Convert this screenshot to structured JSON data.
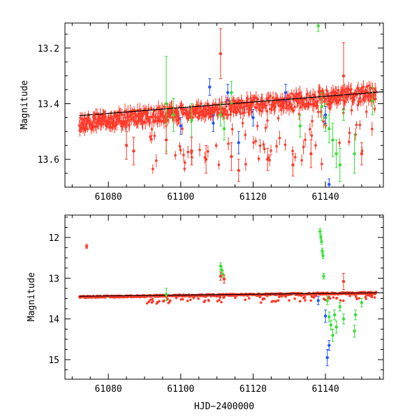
{
  "chart_data": [
    {
      "type": "scatter",
      "panel": "top",
      "title": "",
      "xlabel": "",
      "ylabel": "Magnitude",
      "xlim": [
        61068,
        61156
      ],
      "ylim": [
        13.11,
        13.7
      ],
      "y_inverted": true,
      "xticks": [
        61080,
        61100,
        61120,
        61140
      ],
      "xtick_labels": [
        "61080",
        "61100",
        "61120",
        "61140"
      ],
      "yticks": [
        13.2,
        13.4,
        13.6
      ],
      "ytick_labels": [
        "13.2",
        "13.4",
        "13.6"
      ],
      "colors": {
        "red": "#ff3a2a",
        "blue": "#2255ff",
        "green": "#33e033",
        "fit": "#000000"
      },
      "trend_line": {
        "x0": 61072,
        "y0": 13.443,
        "x1": 61156,
        "y1": 13.357
      },
      "red_band": {
        "x0": 61072,
        "x1": 61154,
        "y_at_x0": 13.47,
        "y_at_x1": 13.36,
        "dip_depth": 0.22
      },
      "series": [
        {
          "name": "red",
          "color": "#ff3a2a",
          "points": [
            {
              "x": 61073,
              "y": 13.47,
              "err": 0.012
            },
            {
              "x": 61074,
              "y": 13.47,
              "err": 0.012
            },
            {
              "x": 61076,
              "y": 13.45,
              "err": 0.012
            },
            {
              "x": 61079,
              "y": 13.44,
              "err": 0.012
            },
            {
              "x": 61085,
              "y": 13.55,
              "err": 0.05
            },
            {
              "x": 61087,
              "y": 13.57,
              "err": 0.05
            },
            {
              "x": 61096,
              "y": 13.53,
              "err": 0.05
            },
            {
              "x": 61103,
              "y": 13.57,
              "err": 0.05
            },
            {
              "x": 61107,
              "y": 13.6,
              "err": 0.05
            },
            {
              "x": 61111,
              "y": 13.22,
              "err": 0.09
            },
            {
              "x": 61114,
              "y": 13.59,
              "err": 0.05
            },
            {
              "x": 61116,
              "y": 13.64,
              "err": 0.04
            },
            {
              "x": 61124,
              "y": 13.6,
              "err": 0.04
            },
            {
              "x": 61131,
              "y": 13.62,
              "err": 0.04
            },
            {
              "x": 61136,
              "y": 13.58,
              "err": 0.05
            },
            {
              "x": 61145,
              "y": 13.3,
              "err": 0.12
            },
            {
              "x": 61150,
              "y": 13.58,
              "err": 0.04
            }
          ]
        },
        {
          "name": "blue",
          "color": "#2255ff",
          "points": [
            {
              "x": 61100,
              "y": 13.48,
              "err": 0.03
            },
            {
              "x": 61108,
              "y": 13.34,
              "err": 0.03
            },
            {
              "x": 61109,
              "y": 13.47,
              "err": 0.03
            },
            {
              "x": 61113,
              "y": 13.36,
              "err": 0.03
            },
            {
              "x": 61116,
              "y": 13.54,
              "err": 0.04
            },
            {
              "x": 61120,
              "y": 13.45,
              "err": 0.03
            },
            {
              "x": 61129,
              "y": 13.36,
              "err": 0.03
            },
            {
              "x": 61140,
              "y": 13.44,
              "err": 0.03
            },
            {
              "x": 61141,
              "y": 13.69,
              "err": 0.02
            }
          ]
        },
        {
          "name": "green",
          "color": "#33e033",
          "points": [
            {
              "x": 61096,
              "y": 13.4,
              "err": 0.17
            },
            {
              "x": 61098,
              "y": 13.44,
              "err": 0.06
            },
            {
              "x": 61103,
              "y": 13.46,
              "err": 0.06
            },
            {
              "x": 61111,
              "y": 13.44,
              "err": 0.04
            },
            {
              "x": 61112,
              "y": 13.49,
              "err": 0.04
            },
            {
              "x": 61114,
              "y": 13.36,
              "err": 0.04
            },
            {
              "x": 61133,
              "y": 13.48,
              "err": 0.04
            },
            {
              "x": 61138,
              "y": 13.12,
              "err": 0.02
            },
            {
              "x": 61139,
              "y": 13.41,
              "err": 0.05
            },
            {
              "x": 61140,
              "y": 13.45,
              "err": 0.05
            },
            {
              "x": 61141,
              "y": 13.49,
              "err": 0.05
            },
            {
              "x": 61142,
              "y": 13.53,
              "err": 0.06
            },
            {
              "x": 61143,
              "y": 13.58,
              "err": 0.05
            },
            {
              "x": 61144,
              "y": 13.62,
              "err": 0.06
            },
            {
              "x": 61145,
              "y": 13.42,
              "err": 0.04
            },
            {
              "x": 61148,
              "y": 13.58,
              "err": 0.07
            },
            {
              "x": 61153,
              "y": 13.39,
              "err": 0.05
            }
          ]
        }
      ]
    },
    {
      "type": "scatter",
      "panel": "bottom",
      "title": "",
      "xlabel": "HJD−2400000",
      "ylabel": "Magnitude",
      "xlim": [
        61068,
        61156
      ],
      "ylim": [
        11.45,
        15.48
      ],
      "y_inverted": true,
      "xticks": [
        61080,
        61100,
        61120,
        61140
      ],
      "xtick_labels": [
        "61080",
        "61100",
        "61120",
        "61140"
      ],
      "yticks": [
        12,
        13,
        14,
        15
      ],
      "ytick_labels": [
        "12",
        "13",
        "14",
        "15"
      ],
      "colors": {
        "red": "#ff3a2a",
        "blue": "#2255ff",
        "green": "#33e033",
        "fit": "#000000"
      },
      "trend_line": {
        "x0": 61072,
        "y0": 13.443,
        "x1": 61156,
        "y1": 13.357
      },
      "red_band": {
        "x0": 61072,
        "x1": 61154,
        "y_at_x0": 13.46,
        "y_at_x1": 13.36,
        "dip_depth": 0.18
      },
      "series": [
        {
          "name": "red",
          "color": "#ff3a2a",
          "points": [
            {
              "x": 61074,
              "y": 12.22,
              "err": 0.05
            },
            {
              "x": 61111,
              "y": 12.95,
              "err": 0.1
            },
            {
              "x": 61112,
              "y": 13.02,
              "err": 0.1
            },
            {
              "x": 61145,
              "y": 13.08,
              "err": 0.2
            }
          ]
        },
        {
          "name": "blue",
          "color": "#2255ff",
          "points": [
            {
              "x": 61138,
              "y": 13.55,
              "err": 0.1
            },
            {
              "x": 61140,
              "y": 13.93,
              "err": 0.15
            },
            {
              "x": 61141,
              "y": 14.65,
              "err": 0.12
            },
            {
              "x": 61140.5,
              "y": 14.95,
              "err": 0.2
            }
          ]
        },
        {
          "name": "green",
          "color": "#33e033",
          "points": [
            {
              "x": 61096,
              "y": 13.4,
              "err": 0.15
            },
            {
              "x": 61111,
              "y": 12.7,
              "err": 0.08
            },
            {
              "x": 61111.3,
              "y": 12.8,
              "err": 0.08
            },
            {
              "x": 61111.6,
              "y": 12.9,
              "err": 0.08
            },
            {
              "x": 61138.5,
              "y": 11.85,
              "err": 0.07
            },
            {
              "x": 61138.7,
              "y": 11.98,
              "err": 0.07
            },
            {
              "x": 61138.9,
              "y": 12.1,
              "err": 0.07
            },
            {
              "x": 61139.1,
              "y": 12.33,
              "err": 0.07
            },
            {
              "x": 61139.3,
              "y": 12.45,
              "err": 0.07
            },
            {
              "x": 61139.5,
              "y": 12.95,
              "err": 0.07
            },
            {
              "x": 61140.5,
              "y": 13.55,
              "err": 0.1
            },
            {
              "x": 61141,
              "y": 13.95,
              "err": 0.12
            },
            {
              "x": 61141.5,
              "y": 14.15,
              "err": 0.12
            },
            {
              "x": 61142,
              "y": 14.4,
              "err": 0.15
            },
            {
              "x": 61142.5,
              "y": 13.9,
              "err": 0.12
            },
            {
              "x": 61143,
              "y": 14.2,
              "err": 0.15
            },
            {
              "x": 61144,
              "y": 13.7,
              "err": 0.1
            },
            {
              "x": 61145,
              "y": 14.0,
              "err": 0.12
            },
            {
              "x": 61148,
              "y": 14.3,
              "err": 0.15
            },
            {
              "x": 61148.3,
              "y": 13.9,
              "err": 0.12
            },
            {
              "x": 61150,
              "y": 13.6,
              "err": 0.1
            }
          ]
        }
      ]
    }
  ]
}
